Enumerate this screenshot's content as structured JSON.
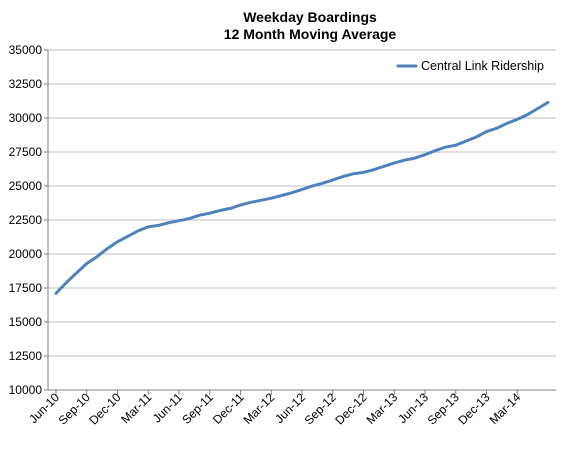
{
  "chart_data": {
    "type": "line",
    "title": "Weekday Boardings",
    "subtitle": "12 Month Moving Average",
    "xlabel": "",
    "ylabel": "",
    "ylim": [
      10000,
      35000
    ],
    "yticks": [
      10000,
      12500,
      15000,
      17500,
      20000,
      22500,
      25000,
      27500,
      30000,
      32500,
      35000
    ],
    "xtick_labels": [
      "Jun-10",
      "Sep-10",
      "Dec-10",
      "Mar-11",
      "Jun-11",
      "Sep-11",
      "Dec-11",
      "Mar-12",
      "Jun-12",
      "Sep-12",
      "Dec-12",
      "Mar-13",
      "Jun-13",
      "Sep-13",
      "Dec-13",
      "Mar-14"
    ],
    "grid": "horizontal",
    "legend_position": "top-right",
    "series_color": "#4f81bd",
    "x": [
      "Jun-10",
      "Jul-10",
      "Aug-10",
      "Sep-10",
      "Oct-10",
      "Nov-10",
      "Dec-10",
      "Jan-11",
      "Feb-11",
      "Mar-11",
      "Apr-11",
      "May-11",
      "Jun-11",
      "Jul-11",
      "Aug-11",
      "Sep-11",
      "Oct-11",
      "Nov-11",
      "Dec-11",
      "Jan-12",
      "Feb-12",
      "Mar-12",
      "Apr-12",
      "May-12",
      "Jun-12",
      "Jul-12",
      "Aug-12",
      "Sep-12",
      "Oct-12",
      "Nov-12",
      "Dec-12",
      "Jan-13",
      "Feb-13",
      "Mar-13",
      "Apr-13",
      "May-13",
      "Jun-13",
      "Jul-13",
      "Aug-13",
      "Sep-13",
      "Oct-13",
      "Nov-13",
      "Dec-13",
      "Jan-14",
      "Feb-14",
      "Mar-14",
      "Apr-14",
      "May-14",
      "Jun-14"
    ],
    "series": [
      {
        "name": "Central Link Ridership",
        "values": [
          17100,
          17900,
          18600,
          19300,
          19800,
          20400,
          20900,
          21300,
          21700,
          22000,
          22100,
          22300,
          22450,
          22600,
          22850,
          23000,
          23200,
          23350,
          23600,
          23800,
          23950,
          24100,
          24300,
          24500,
          24750,
          25000,
          25200,
          25450,
          25700,
          25900,
          26000,
          26200,
          26450,
          26700,
          26900,
          27050,
          27300,
          27600,
          27850,
          28000,
          28300,
          28600,
          29000,
          29250,
          29600,
          29900,
          30250,
          30700,
          31150
        ]
      }
    ]
  }
}
